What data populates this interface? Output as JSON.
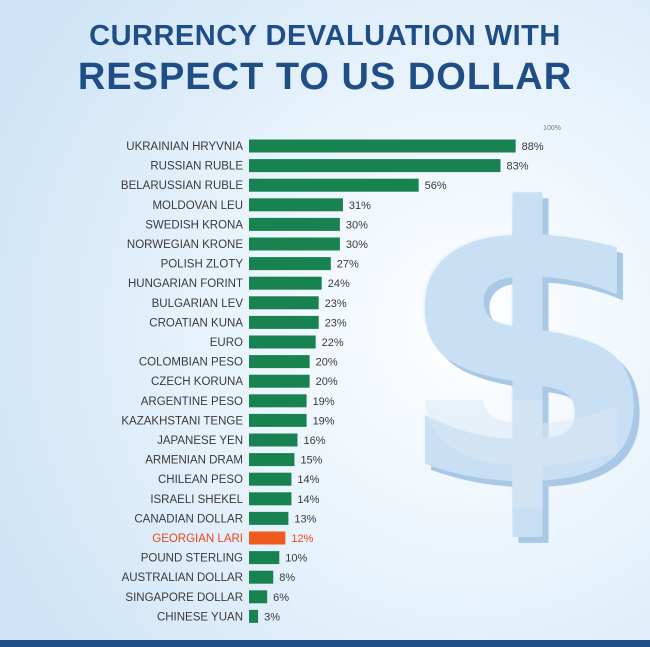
{
  "title": {
    "line1": "CURRENCY DEVALUATION WITH",
    "line2": "RESPECT TO US DOLLAR"
  },
  "decoration": {
    "dollar_glyph": "$"
  },
  "colors": {
    "bar": "#188351",
    "highlight_bar": "#ef5b1f",
    "highlight_label": "#e8481c",
    "label": "#3a3a3a",
    "value_label": "#3a3a3a",
    "top_tick": "#7a7a7a",
    "title": "#1f4e86"
  },
  "chart_data": {
    "type": "bar",
    "orientation": "horizontal",
    "categories": [
      "UKRAINIAN HRYVNIA",
      "RUSSIAN RUBLE",
      "BELARUSSIAN RUBLE",
      "MOLDOVAN LEU",
      "SWEDISH KRONA",
      "NORWEGIAN KRONE",
      "POLISH ZLOTY",
      "HUNGARIAN FORINT",
      "BULGARIAN LEV",
      "CROATIAN KUNA",
      "EURO",
      "COLOMBIAN PESO",
      "CZECH KORUNA",
      "ARGENTINE PESO",
      "KAZAKHSTANI TENGE",
      "JAPANESE YEN",
      "ARMENIAN DRAM",
      "CHILEAN PESO",
      "ISRAELI SHEKEL",
      "CANADIAN DOLLAR",
      "GEORGIAN LARI",
      "POUND STERLING",
      "AUSTRALIAN DOLLAR",
      "SINGAPORE DOLLAR",
      "CHINESE YUAN"
    ],
    "values": [
      88,
      83,
      56,
      31,
      30,
      30,
      27,
      24,
      23,
      23,
      22,
      20,
      20,
      19,
      19,
      16,
      15,
      14,
      14,
      13,
      12,
      10,
      8,
      6,
      3
    ],
    "value_labels": [
      "88%",
      "83%",
      "56%",
      "31%",
      "30%",
      "30%",
      "27%",
      "24%",
      "23%",
      "23%",
      "22%",
      "20%",
      "20%",
      "19%",
      "19%",
      "16%",
      "15%",
      "14%",
      "14%",
      "13%",
      "12%",
      "10%",
      "8%",
      "6%",
      "3%"
    ],
    "highlight": "GEORGIAN LARI",
    "xlim": [
      0,
      100
    ],
    "top_tick_label": "100%",
    "title": "CURRENCY DEVALUATION WITH RESPECT TO US DOLLAR",
    "xlabel": "",
    "ylabel": "",
    "grid": false,
    "legend": "none"
  }
}
